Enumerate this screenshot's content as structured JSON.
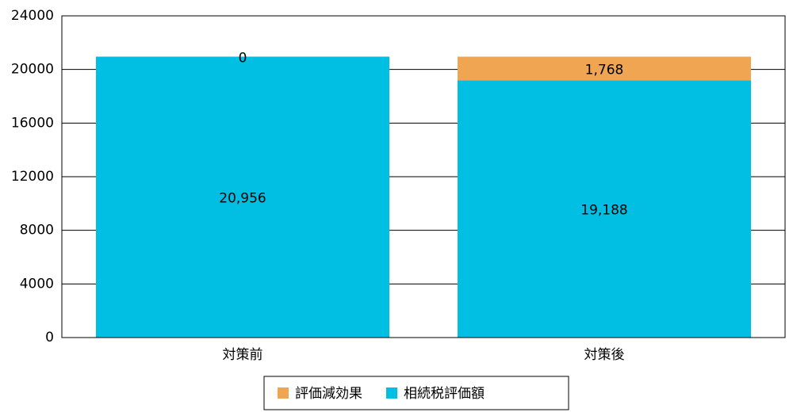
{
  "chart_data": {
    "type": "stacked-bar",
    "categories": [
      "対策前",
      "対策後"
    ],
    "series": [
      {
        "name": "評価減効果",
        "color": "#f0a552",
        "values": [
          0,
          1768
        ],
        "value_labels": [
          "0",
          "1,768"
        ]
      },
      {
        "name": "相続税評価額",
        "color": "#00bfe2",
        "values": [
          20956,
          19188
        ],
        "value_labels": [
          "20,956",
          "19,188"
        ]
      }
    ],
    "ylim": [
      0,
      24000
    ],
    "yticks": [
      0,
      4000,
      8000,
      12000,
      16000,
      20000,
      24000
    ],
    "grid": true
  }
}
